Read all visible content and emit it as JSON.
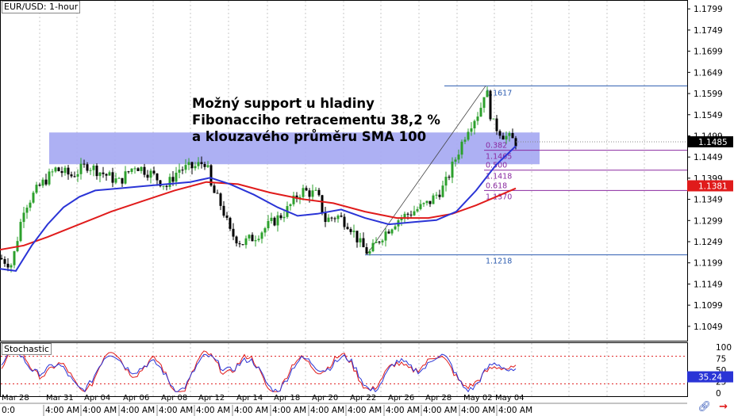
{
  "symbol_label": "EUR/USD: 1-hour",
  "annotation": {
    "line1": "Možný support u hladiny",
    "line2": "Fibonacciho retracementu 38,2 %",
    "line3": "a klouzavého průměru SMA 100"
  },
  "stochastic_label": "Stochastic",
  "chart_data": {
    "type": "candlestick",
    "price_axis": {
      "ylim": [
        1.1015,
        1.182
      ],
      "ticks": [
        "1.1799",
        "1.1749",
        "1.1699",
        "1.1649",
        "1.1599",
        "1.1549",
        "1.1499",
        "1.1449",
        "1.1399",
        "1.1349",
        "1.1299",
        "1.1249",
        "1.1199",
        "1.1149",
        "1.1099",
        "1.1049"
      ],
      "current_price": "1.1485",
      "sma_marker": "1.1381"
    },
    "time_axis": {
      "date_labels": [
        "Mar 28",
        "Mar 31",
        "Apr 04",
        "Apr 06",
        "Apr 08",
        "Apr 12",
        "Apr 14",
        "Apr 18",
        "Apr 20",
        "Apr 22",
        "Apr 26",
        "Apr 28",
        "May 02",
        "May 04"
      ],
      "time_label": "4:00 AM",
      "left_stub": "0:0"
    },
    "price_path": [
      [
        0,
        1.121
      ],
      [
        15,
        1.1195
      ],
      [
        30,
        1.133
      ],
      [
        50,
        1.138
      ],
      [
        70,
        1.142
      ],
      [
        90,
        1.1405
      ],
      [
        110,
        1.143
      ],
      [
        130,
        1.141
      ],
      [
        150,
        1.139
      ],
      [
        170,
        1.143
      ],
      [
        190,
        1.141
      ],
      [
        210,
        1.138
      ],
      [
        225,
        1.142
      ],
      [
        245,
        1.1425
      ],
      [
        260,
        1.144
      ],
      [
        265,
        1.138
      ],
      [
        280,
        1.133
      ],
      [
        290,
        1.127
      ],
      [
        305,
        1.1245
      ],
      [
        320,
        1.126
      ],
      [
        340,
        1.129
      ],
      [
        360,
        1.132
      ],
      [
        380,
        1.137
      ],
      [
        400,
        1.136
      ],
      [
        410,
        1.13
      ],
      [
        425,
        1.131
      ],
      [
        440,
        1.129
      ],
      [
        455,
        1.124
      ],
      [
        465,
        1.122
      ],
      [
        480,
        1.126
      ],
      [
        500,
        1.13
      ],
      [
        520,
        1.132
      ],
      [
        540,
        1.134
      ],
      [
        560,
        1.138
      ],
      [
        575,
        1.145
      ],
      [
        590,
        1.152
      ],
      [
        605,
        1.156
      ],
      [
        612,
        1.1617
      ],
      [
        620,
        1.153
      ],
      [
        635,
        1.15
      ],
      [
        650,
        1.1485
      ]
    ],
    "sma_blue": [
      [
        0,
        1.1185
      ],
      [
        20,
        1.118
      ],
      [
        40,
        1.124
      ],
      [
        60,
        1.129
      ],
      [
        80,
        1.133
      ],
      [
        100,
        1.1355
      ],
      [
        120,
        1.137
      ],
      [
        150,
        1.1375
      ],
      [
        180,
        1.138
      ],
      [
        210,
        1.1385
      ],
      [
        240,
        1.139
      ],
      [
        265,
        1.14
      ],
      [
        290,
        1.1385
      ],
      [
        320,
        1.136
      ],
      [
        350,
        1.133
      ],
      [
        375,
        1.131
      ],
      [
        400,
        1.1315
      ],
      [
        430,
        1.1325
      ],
      [
        460,
        1.1305
      ],
      [
        490,
        1.129
      ],
      [
        520,
        1.1295
      ],
      [
        550,
        1.13
      ],
      [
        575,
        1.132
      ],
      [
        600,
        1.137
      ],
      [
        625,
        1.143
      ],
      [
        650,
        1.1475
      ]
    ],
    "sma_red": [
      [
        0,
        1.123
      ],
      [
        30,
        1.124
      ],
      [
        60,
        1.126
      ],
      [
        100,
        1.129
      ],
      [
        140,
        1.132
      ],
      [
        180,
        1.1345
      ],
      [
        220,
        1.137
      ],
      [
        260,
        1.139
      ],
      [
        300,
        1.1385
      ],
      [
        340,
        1.1365
      ],
      [
        380,
        1.135
      ],
      [
        420,
        1.134
      ],
      [
        460,
        1.132
      ],
      [
        500,
        1.1305
      ],
      [
        540,
        1.1305
      ],
      [
        570,
        1.1315
      ],
      [
        600,
        1.1335
      ],
      [
        625,
        1.1355
      ],
      [
        650,
        1.1375
      ]
    ],
    "support_zone": {
      "from": 1.1432,
      "to": 1.1507,
      "x_from": 62,
      "x_to": 680
    },
    "fibonacci": {
      "high": {
        "label": "1.1617",
        "price": 1.1617
      },
      "low": {
        "label": "1.1218",
        "price": 1.1218
      },
      "levels": [
        {
          "ratio": "0.382",
          "price": "1.1465",
          "value": 1.1465
        },
        {
          "ratio": "0.500",
          "price": "1.1418",
          "value": 1.1418
        },
        {
          "ratio": "0.618",
          "price": "1.1370",
          "value": 1.137
        }
      ]
    },
    "stochastic": {
      "ylim": [
        0,
        100
      ],
      "ticks": [
        "100",
        "75",
        "50",
        "25",
        "0"
      ],
      "current": "35.24",
      "levels": [
        80,
        20
      ]
    }
  },
  "colors": {
    "zone": "#a9acf2",
    "fib_lines": "#2b5bb0",
    "fib_levels": "#8a2aa0",
    "sma_blue": "#2a34d6",
    "sma_red": "#e01b1b",
    "candle_up": "#2ca02c",
    "candle_down": "#000000",
    "stoch_k": "#2a34d6",
    "stoch_d": "#e01b1b",
    "price_marker": "#000000",
    "sma_marker": "#e01b1b"
  }
}
